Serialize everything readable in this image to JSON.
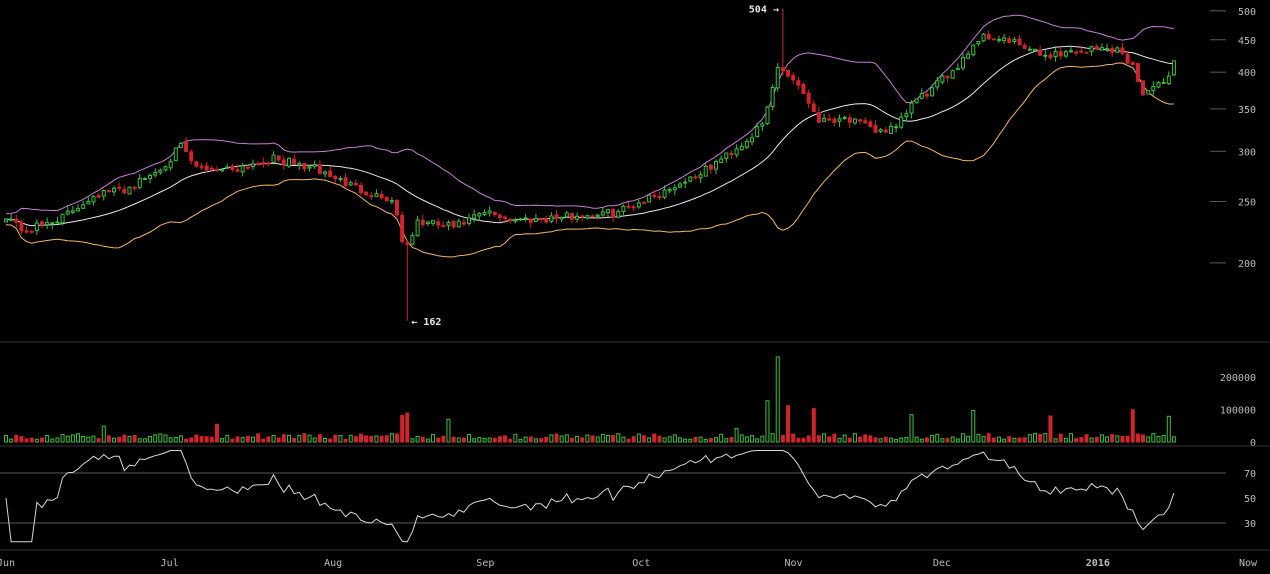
{
  "chart_data": {
    "type": "candlestick",
    "price": {
      "scale": "log",
      "ylim": [
        150,
        520
      ],
      "y_ticks": [
        "200",
        "250",
        "300",
        "350",
        "400",
        "450",
        "500"
      ],
      "annotations": {
        "high_label": "504 →",
        "low_label": "← 162"
      },
      "keypoints": [
        {
          "t": 0.0,
          "c": 238
        },
        {
          "t": 0.5,
          "c": 224
        },
        {
          "t": 1.6,
          "c": 238
        },
        {
          "t": 2.3,
          "c": 256
        },
        {
          "t": 3.2,
          "c": 262
        },
        {
          "t": 4.0,
          "c": 280
        },
        {
          "t": 4.6,
          "c": 305
        },
        {
          "t": 5.0,
          "c": 282
        },
        {
          "t": 6.0,
          "c": 282
        },
        {
          "t": 7.0,
          "c": 292
        },
        {
          "t": 8.1,
          "c": 282
        },
        {
          "t": 9.0,
          "c": 266
        },
        {
          "t": 10.2,
          "c": 250
        },
        {
          "t": 10.5,
          "c": 207
        },
        {
          "t": 10.8,
          "c": 232
        },
        {
          "t": 11.8,
          "c": 228
        },
        {
          "t": 12.6,
          "c": 240
        },
        {
          "t": 13.4,
          "c": 234
        },
        {
          "t": 14.5,
          "c": 236
        },
        {
          "t": 16.0,
          "c": 240
        },
        {
          "t": 17.2,
          "c": 258
        },
        {
          "t": 18.4,
          "c": 280
        },
        {
          "t": 19.4,
          "c": 310
        },
        {
          "t": 19.9,
          "c": 330
        },
        {
          "t": 20.3,
          "c": 410
        },
        {
          "t": 20.8,
          "c": 385
        },
        {
          "t": 21.4,
          "c": 335
        },
        {
          "t": 22.0,
          "c": 340
        },
        {
          "t": 22.8,
          "c": 324
        },
        {
          "t": 23.4,
          "c": 325
        },
        {
          "t": 23.8,
          "c": 356
        },
        {
          "t": 24.4,
          "c": 378
        },
        {
          "t": 25.0,
          "c": 410
        },
        {
          "t": 25.6,
          "c": 455
        },
        {
          "t": 26.0,
          "c": 455
        },
        {
          "t": 26.6,
          "c": 442
        },
        {
          "t": 27.2,
          "c": 425
        },
        {
          "t": 28.0,
          "c": 431
        },
        {
          "t": 28.6,
          "c": 435
        },
        {
          "t": 29.2,
          "c": 436
        },
        {
          "t": 29.6,
          "c": 410
        },
        {
          "t": 29.9,
          "c": 372
        },
        {
          "t": 30.4,
          "c": 382
        },
        {
          "t": 30.7,
          "c": 415
        }
      ],
      "volume_spikes": [
        [
          2.6,
          1.0
        ],
        [
          5.6,
          1.2
        ],
        [
          10.4,
          1.8
        ],
        [
          10.5,
          1.8
        ],
        [
          11.6,
          1.5
        ],
        [
          19.2,
          0.9
        ],
        [
          20.0,
          2.8
        ],
        [
          20.3,
          5.8
        ],
        [
          20.6,
          2.4
        ],
        [
          21.2,
          2.2
        ],
        [
          23.8,
          1.8
        ],
        [
          25.4,
          2.0
        ],
        [
          27.4,
          1.6
        ],
        [
          29.6,
          2.2
        ],
        [
          30.6,
          1.6
        ]
      ]
    },
    "volume": {
      "ylim": [
        0,
        280000
      ],
      "y_ticks": [
        "0",
        "100000",
        "200000"
      ],
      "series_colors": {
        "up": "#3ec03e",
        "down": "#d0252b"
      }
    },
    "rsi": {
      "ylim": [
        10,
        90
      ],
      "y_ticks": [
        "30",
        "50",
        "70"
      ],
      "levels": [
        30,
        70
      ],
      "color": "#d8d8d8"
    },
    "x_ticks": [
      {
        "label": "Jun",
        "t": 0.0
      },
      {
        "label": "Jul",
        "t": 4.3
      },
      {
        "label": "Aug",
        "t": 8.6
      },
      {
        "label": "Sep",
        "t": 12.6
      },
      {
        "label": "Oct",
        "t": 16.7
      },
      {
        "label": "Nov",
        "t": 20.7
      },
      {
        "label": "Dec",
        "t": 24.6
      },
      {
        "label": "2016",
        "t": 28.7,
        "bold": true
      },
      {
        "label": "Now",
        "t": 32.7
      }
    ],
    "indicators": {
      "bollinger_upper_color": "#c77ed6",
      "bollinger_mid_color": "#e8e8e8",
      "bollinger_lower_color": "#f0b860"
    },
    "colors": {
      "up": "#3ec03e",
      "down": "#d0252b",
      "background": "#000000",
      "grid": "#5a5a5a",
      "axis_text": "#bbbbbb",
      "annotation_text": "#e6e6e6"
    }
  }
}
